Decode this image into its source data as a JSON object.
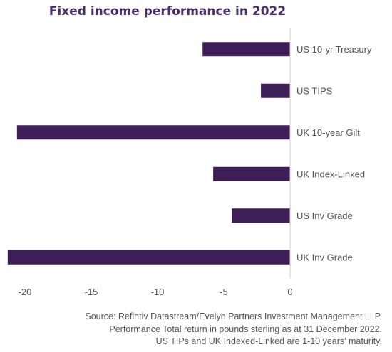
{
  "chart_data": {
    "type": "bar",
    "orientation": "horizontal",
    "title": "Fixed income performance in 2022",
    "categories": [
      "US 10-yr Treasury",
      "US TIPS",
      "UK 10-year Gilt",
      "UK Index-Linked",
      "US Inv Grade",
      "UK Inv Grade"
    ],
    "values": [
      -6.6,
      -2.2,
      -20.6,
      -5.8,
      -4.4,
      -21.3
    ],
    "xlim": [
      -21.5,
      0
    ],
    "xticks": [
      -20,
      -15,
      -10,
      -5,
      0
    ],
    "xtick_labels": [
      "-20",
      "-15",
      "-10",
      "-5",
      "0"
    ],
    "grid": false,
    "bar_color": "#3d1e57"
  },
  "footnote": {
    "line1": "Source: Refintiv Datastream/Evelyn Partners Investment Management LLP.",
    "line2": "Performance Total return in pounds sterling as at 31 December 2022.",
    "line3": "US TIPs and UK Indexed-Linked are 1-10 years' maturity."
  }
}
